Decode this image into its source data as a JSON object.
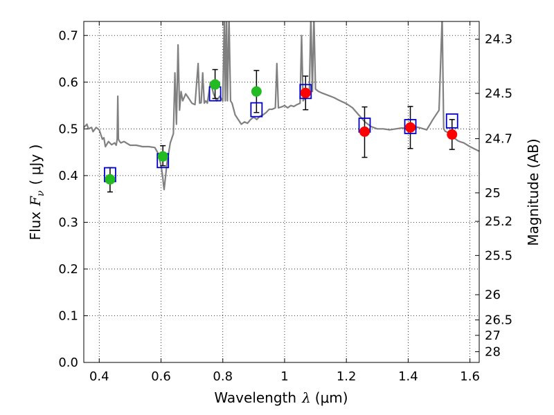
{
  "chart_data": {
    "type": "scatter",
    "title": "",
    "xlabel": {
      "prefix": "Wavelength",
      "symbol": "λ",
      "unit": "(μm)"
    },
    "ylabel": {
      "prefix": "Flux",
      "symbol": "F",
      "subscript": "ν",
      "unit": "( μJy )"
    },
    "y2label": "Magnitude (AB)",
    "xlim": [
      0.35,
      1.63
    ],
    "ylim": [
      0.0,
      0.73
    ],
    "grid": true,
    "grid_style": "dotted",
    "x_ticks": [
      0.4,
      0.6,
      0.8,
      1.0,
      1.2,
      1.4,
      1.6
    ],
    "x_tick_labels": [
      "0.4",
      "0.6",
      "0.8",
      "1",
      "1.2",
      "1.4",
      "1.6"
    ],
    "y_ticks": [
      0.0,
      0.1,
      0.2,
      0.3,
      0.4,
      0.5,
      0.6,
      0.7
    ],
    "y_tick_labels": [
      "0.0",
      "0.1",
      "0.2",
      "0.3",
      "0.4",
      "0.5",
      "0.6",
      "0.7"
    ],
    "y2_ticks": [
      {
        "label": "24.3",
        "flux": 0.692
      },
      {
        "label": "24.5",
        "flux": 0.576
      },
      {
        "label": "24.7",
        "flux": 0.479
      },
      {
        "label": "25",
        "flux": 0.363
      },
      {
        "label": "25.2",
        "flux": 0.302
      },
      {
        "label": "25.5",
        "flux": 0.229
      },
      {
        "label": "26",
        "flux": 0.145
      },
      {
        "label": "26.5",
        "flux": 0.091
      },
      {
        "label": "27",
        "flux": 0.058
      },
      {
        "label": "28",
        "flux": 0.023
      }
    ],
    "colors": {
      "spectrum": "#808080",
      "model_box": "#0000cc",
      "optical": "#22bb22",
      "nir": "#ff0000",
      "errorbar": "#000000"
    },
    "series": [
      {
        "kind": "observed",
        "points": [
          {
            "x": 0.435,
            "y": 0.392,
            "yerr_low": 0.027,
            "yerr_high": 0.025,
            "color": "optical"
          },
          {
            "x": 0.606,
            "y": 0.441,
            "yerr_low": 0.02,
            "yerr_high": 0.023,
            "color": "optical"
          },
          {
            "x": 0.775,
            "y": 0.595,
            "yerr_low": 0.03,
            "yerr_high": 0.032,
            "color": "optical"
          },
          {
            "x": 0.909,
            "y": 0.58,
            "yerr_low": 0.045,
            "yerr_high": 0.045,
            "color": "optical"
          },
          {
            "x": 1.068,
            "y": 0.577,
            "yerr_low": 0.036,
            "yerr_high": 0.036,
            "color": "nir"
          },
          {
            "x": 1.259,
            "y": 0.494,
            "yerr_low": 0.055,
            "yerr_high": 0.053,
            "color": "nir"
          },
          {
            "x": 1.407,
            "y": 0.503,
            "yerr_low": 0.045,
            "yerr_high": 0.045,
            "color": "nir"
          },
          {
            "x": 1.542,
            "y": 0.488,
            "yerr_low": 0.032,
            "yerr_high": 0.032,
            "color": "nir"
          }
        ]
      },
      {
        "kind": "model",
        "points": [
          {
            "x": 0.435,
            "y": 0.402
          },
          {
            "x": 0.606,
            "y": 0.432
          },
          {
            "x": 0.775,
            "y": 0.575
          },
          {
            "x": 0.909,
            "y": 0.541
          },
          {
            "x": 1.068,
            "y": 0.58
          },
          {
            "x": 1.259,
            "y": 0.508
          },
          {
            "x": 1.407,
            "y": 0.505
          },
          {
            "x": 1.542,
            "y": 0.517
          }
        ]
      },
      {
        "kind": "spectrum",
        "points": [
          [
            0.35,
            0.503
          ],
          [
            0.36,
            0.51
          ],
          [
            0.365,
            0.5
          ],
          [
            0.375,
            0.503
          ],
          [
            0.38,
            0.494
          ],
          [
            0.39,
            0.503
          ],
          [
            0.4,
            0.498
          ],
          [
            0.41,
            0.478
          ],
          [
            0.415,
            0.481
          ],
          [
            0.42,
            0.462
          ],
          [
            0.43,
            0.473
          ],
          [
            0.44,
            0.466
          ],
          [
            0.45,
            0.47
          ],
          [
            0.455,
            0.465
          ],
          [
            0.458,
            0.478
          ],
          [
            0.46,
            0.57
          ],
          [
            0.462,
            0.478
          ],
          [
            0.465,
            0.474
          ],
          [
            0.47,
            0.47
          ],
          [
            0.48,
            0.473
          ],
          [
            0.5,
            0.465
          ],
          [
            0.52,
            0.465
          ],
          [
            0.54,
            0.462
          ],
          [
            0.56,
            0.462
          ],
          [
            0.58,
            0.46
          ],
          [
            0.59,
            0.448
          ],
          [
            0.6,
            0.422
          ],
          [
            0.605,
            0.4
          ],
          [
            0.608,
            0.38
          ],
          [
            0.61,
            0.37
          ],
          [
            0.615,
            0.4
          ],
          [
            0.62,
            0.43
          ],
          [
            0.625,
            0.45
          ],
          [
            0.63,
            0.47
          ],
          [
            0.64,
            0.49
          ],
          [
            0.645,
            0.62
          ],
          [
            0.65,
            0.51
          ],
          [
            0.655,
            0.68
          ],
          [
            0.66,
            0.54
          ],
          [
            0.665,
            0.58
          ],
          [
            0.67,
            0.56
          ],
          [
            0.68,
            0.575
          ],
          [
            0.69,
            0.565
          ],
          [
            0.7,
            0.555
          ],
          [
            0.71,
            0.552
          ],
          [
            0.72,
            0.64
          ],
          [
            0.725,
            0.555
          ],
          [
            0.73,
            0.556
          ],
          [
            0.735,
            0.62
          ],
          [
            0.74,
            0.555
          ],
          [
            0.745,
            0.56
          ],
          [
            0.75,
            0.555
          ],
          [
            0.76,
            0.6
          ],
          [
            0.77,
            0.575
          ],
          [
            0.78,
            0.56
          ],
          [
            0.79,
            0.57
          ],
          [
            0.8,
            0.56
          ],
          [
            0.805,
            0.74
          ],
          [
            0.808,
            0.56
          ],
          [
            0.812,
            0.74
          ],
          [
            0.815,
            0.56
          ],
          [
            0.82,
            0.74
          ],
          [
            0.825,
            0.56
          ],
          [
            0.83,
            0.555
          ],
          [
            0.84,
            0.53
          ],
          [
            0.85,
            0.52
          ],
          [
            0.86,
            0.51
          ],
          [
            0.87,
            0.515
          ],
          [
            0.88,
            0.512
          ],
          [
            0.89,
            0.52
          ],
          [
            0.9,
            0.525
          ],
          [
            0.91,
            0.52
          ],
          [
            0.92,
            0.527
          ],
          [
            0.93,
            0.53
          ],
          [
            0.94,
            0.535
          ],
          [
            0.95,
            0.542
          ],
          [
            0.96,
            0.542
          ],
          [
            0.97,
            0.545
          ],
          [
            0.975,
            0.64
          ],
          [
            0.98,
            0.545
          ],
          [
            0.99,
            0.547
          ],
          [
            1.0,
            0.55
          ],
          [
            1.01,
            0.545
          ],
          [
            1.02,
            0.55
          ],
          [
            1.03,
            0.548
          ],
          [
            1.04,
            0.552
          ],
          [
            1.05,
            0.555
          ],
          [
            1.055,
            0.7
          ],
          [
            1.06,
            0.56
          ],
          [
            1.07,
            0.57
          ],
          [
            1.08,
            0.572
          ],
          [
            1.085,
            0.74
          ],
          [
            1.09,
            0.58
          ],
          [
            1.095,
            0.74
          ],
          [
            1.1,
            0.585
          ],
          [
            1.11,
            0.58
          ],
          [
            1.12,
            0.577
          ],
          [
            1.14,
            0.572
          ],
          [
            1.16,
            0.567
          ],
          [
            1.18,
            0.56
          ],
          [
            1.2,
            0.554
          ],
          [
            1.22,
            0.545
          ],
          [
            1.24,
            0.53
          ],
          [
            1.26,
            0.515
          ],
          [
            1.28,
            0.505
          ],
          [
            1.3,
            0.5
          ],
          [
            1.32,
            0.5
          ],
          [
            1.34,
            0.498
          ],
          [
            1.36,
            0.5
          ],
          [
            1.38,
            0.502
          ],
          [
            1.4,
            0.5
          ],
          [
            1.42,
            0.505
          ],
          [
            1.44,
            0.502
          ],
          [
            1.46,
            0.498
          ],
          [
            1.48,
            0.52
          ],
          [
            1.5,
            0.54
          ],
          [
            1.51,
            0.74
          ],
          [
            1.515,
            0.5
          ],
          [
            1.52,
            0.495
          ],
          [
            1.53,
            0.492
          ],
          [
            1.54,
            0.495
          ],
          [
            1.55,
            0.48
          ],
          [
            1.56,
            0.475
          ],
          [
            1.57,
            0.472
          ],
          [
            1.58,
            0.47
          ],
          [
            1.6,
            0.462
          ],
          [
            1.63,
            0.452
          ]
        ]
      }
    ]
  }
}
